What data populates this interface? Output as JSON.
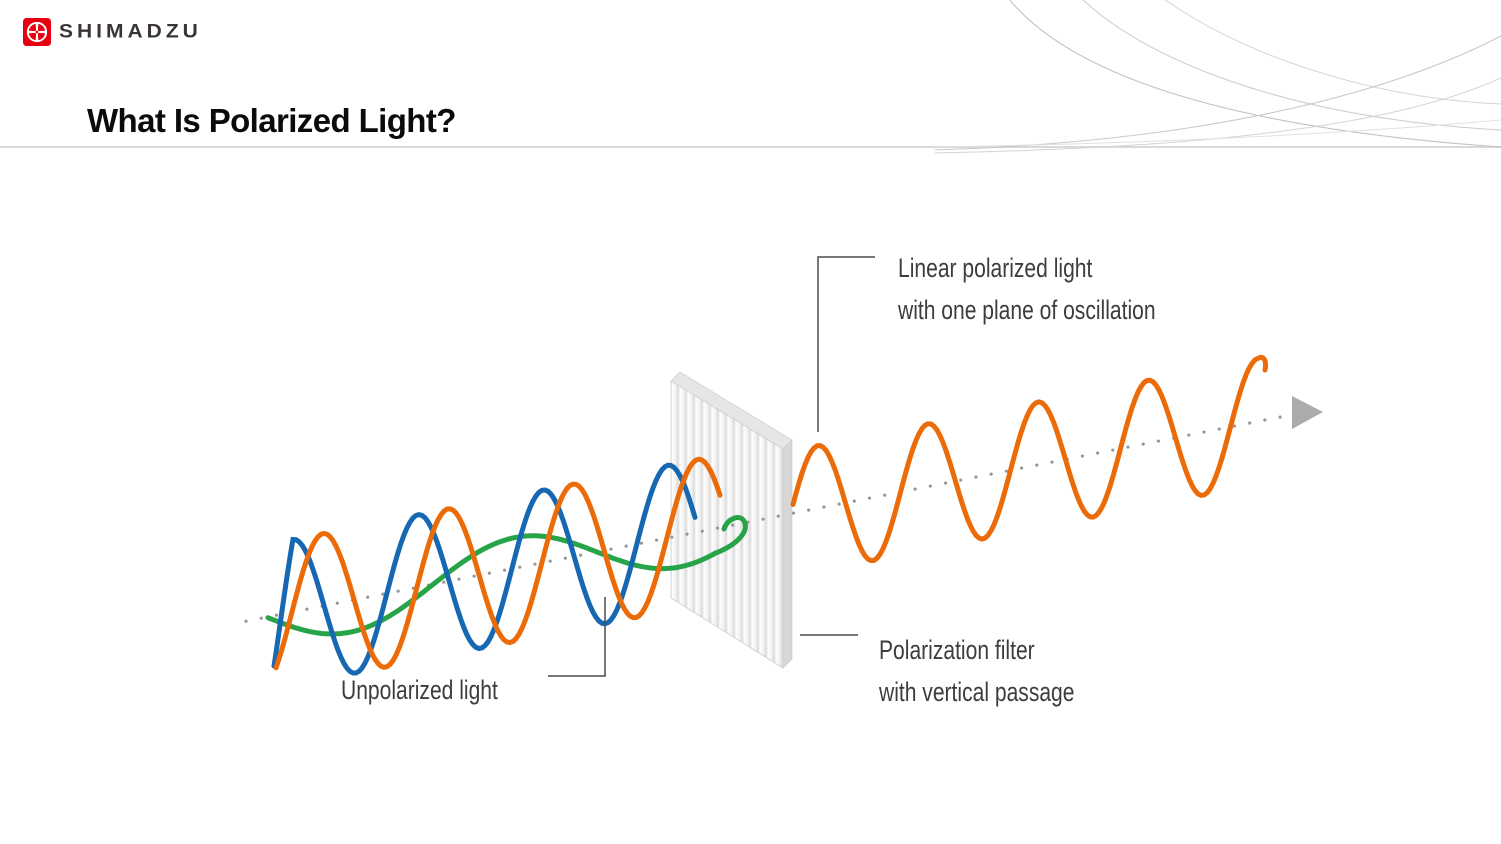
{
  "brand": {
    "wordmark": "SHIMADZU",
    "logo_red": "#e60012"
  },
  "header": {
    "title": "What Is Polarized Light?"
  },
  "diagram": {
    "colors": {
      "blue": "#1668b2",
      "orange": "#ec6b09",
      "green": "#27a348",
      "axis": "#969696",
      "arrow": "#ababab",
      "callout": "#4a4a4a",
      "filter_side": "#d7d7d7",
      "filter_top": "#e6e6e6"
    },
    "labels": {
      "linear_line1": "Linear polarized light",
      "linear_line2": "with one plane of oscillation",
      "unpolarized": "Unpolarized light",
      "filter_line1": "Polarization filter",
      "filter_line2": "with vertical passage"
    }
  }
}
